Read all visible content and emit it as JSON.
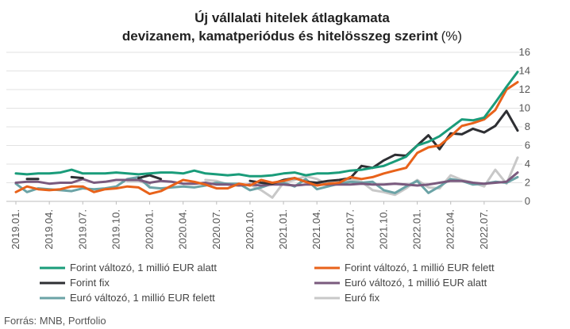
{
  "chart_data": {
    "type": "line",
    "title": "Új vállalati hitelek átlagkamata",
    "title_line2": "devizanem, kamatperiódus és hitelösszeg szerint",
    "title_unit": "(%)",
    "source": "Forrás: MNB, Portfolio",
    "ylim": [
      0,
      16
    ],
    "y_ticks": [
      0,
      2,
      4,
      6,
      8,
      10,
      12,
      14,
      16
    ],
    "y_axis_position": "right",
    "grid": true,
    "legend_position": "bottom",
    "x_tick_labels": [
      "2019.01.",
      "2019.04.",
      "2019.07.",
      "2019.10.",
      "2020.01.",
      "2020.04.",
      "2020.07.",
      "2020.10.",
      "2021.01.",
      "2021.04.",
      "2021.07.",
      "2021.10.",
      "2022.01.",
      "2022.04.",
      "2022.07."
    ],
    "x": [
      "2019.01.",
      "2019.02.",
      "2019.03.",
      "2019.04.",
      "2019.05.",
      "2019.06.",
      "2019.07.",
      "2019.08.",
      "2019.09.",
      "2019.10.",
      "2019.11.",
      "2019.12.",
      "2020.01.",
      "2020.02.",
      "2020.03.",
      "2020.04.",
      "2020.05.",
      "2020.06.",
      "2020.07.",
      "2020.08.",
      "2020.09.",
      "2020.10.",
      "2020.11.",
      "2020.12.",
      "2021.01.",
      "2021.02.",
      "2021.03.",
      "2021.04.",
      "2021.05.",
      "2021.06.",
      "2021.07.",
      "2021.08.",
      "2021.09.",
      "2021.10.",
      "2021.11.",
      "2021.12.",
      "2022.01.",
      "2022.02.",
      "2022.03.",
      "2022.04.",
      "2022.05.",
      "2022.06.",
      "2022.07.",
      "2022.08.",
      "2022.09.",
      "2022.10."
    ],
    "series": [
      {
        "name": "Forint változó, 1 millió EUR alatt",
        "color": "#1a9c7a",
        "values": [
          3.0,
          2.9,
          3.0,
          3.0,
          3.1,
          3.4,
          3.0,
          3.0,
          3.0,
          3.1,
          3.0,
          2.9,
          3.0,
          3.1,
          3.1,
          3.0,
          3.3,
          3.0,
          2.9,
          2.8,
          2.9,
          2.7,
          2.7,
          2.8,
          3.0,
          3.1,
          2.8,
          3.0,
          3.0,
          3.1,
          3.3,
          3.4,
          3.6,
          3.8,
          4.3,
          4.8,
          6.0,
          6.4,
          7.0,
          7.9,
          8.8,
          8.7,
          9.0,
          10.6,
          12.3,
          13.9
        ]
      },
      {
        "name": "Forint változó, 1 millió EUR felett",
        "color": "#e8621a",
        "values": [
          1.0,
          1.6,
          1.3,
          1.2,
          1.3,
          1.6,
          1.6,
          1.0,
          1.3,
          1.4,
          1.6,
          1.5,
          0.8,
          1.1,
          1.7,
          2.3,
          2.1,
          1.8,
          1.4,
          1.4,
          1.9,
          1.7,
          2.3,
          2.0,
          2.2,
          2.5,
          2.1,
          1.7,
          1.9,
          2.0,
          2.6,
          2.4,
          2.6,
          3.0,
          3.3,
          3.6,
          5.2,
          5.8,
          6.0,
          7.0,
          8.1,
          8.4,
          8.8,
          9.8,
          12.0,
          12.8
        ]
      },
      {
        "name": "Forint fix",
        "color": "#2e2f33",
        "values": [
          null,
          2.4,
          2.4,
          null,
          null,
          2.6,
          2.5,
          null,
          null,
          null,
          null,
          2.5,
          2.8,
          2.4,
          null,
          null,
          null,
          null,
          null,
          null,
          null,
          2.2,
          2.0,
          1.9,
          2.3,
          2.5,
          2.1,
          2.0,
          2.2,
          2.3,
          2.5,
          3.8,
          3.6,
          4.4,
          5.0,
          4.9,
          6.0,
          7.1,
          5.6,
          7.3,
          7.2,
          7.8,
          7.4,
          8.1,
          9.7,
          7.6
        ]
      },
      {
        "name": "Euró változó, 1 millió EUR alatt",
        "color": "#7a5a7e",
        "values": [
          2.0,
          2.1,
          2.1,
          1.9,
          2.0,
          2.0,
          2.4,
          2.0,
          2.1,
          2.3,
          2.3,
          2.3,
          2.0,
          2.2,
          2.1,
          1.9,
          1.9,
          2.0,
          1.8,
          1.8,
          1.7,
          1.8,
          1.7,
          1.8,
          1.8,
          1.7,
          1.8,
          1.8,
          1.8,
          1.8,
          1.8,
          1.9,
          1.8,
          1.8,
          1.9,
          1.8,
          1.7,
          1.8,
          2.0,
          2.2,
          2.2,
          2.0,
          1.9,
          2.0,
          2.1,
          3.1
        ]
      },
      {
        "name": "Euró változó, 1 millió EUR felett",
        "color": "#6ba3a6",
        "values": [
          1.9,
          1.0,
          1.4,
          1.3,
          1.2,
          1.1,
          1.4,
          1.3,
          1.4,
          1.6,
          2.4,
          2.6,
          1.5,
          1.4,
          1.5,
          1.6,
          1.5,
          1.7,
          2.0,
          1.9,
          1.9,
          1.2,
          1.5,
          1.9,
          2.0,
          1.6,
          2.4,
          1.3,
          1.6,
          1.9,
          2.1,
          2.0,
          2.1,
          1.2,
          0.9,
          1.6,
          2.2,
          0.9,
          1.6,
          2.4,
          2.2,
          1.8,
          1.9,
          2.1,
          2.0,
          2.6
        ]
      },
      {
        "name": "Euró fix",
        "color": "#c8c8c8",
        "values": [
          null,
          null,
          null,
          null,
          null,
          null,
          null,
          null,
          null,
          null,
          2.2,
          2.2,
          1.8,
          null,
          null,
          null,
          null,
          2.3,
          2.2,
          1.8,
          1.7,
          1.8,
          1.2,
          0.4,
          2.0,
          2.3,
          2.7,
          2.4,
          1.8,
          2.0,
          2.4,
          2.1,
          1.2,
          1.0,
          0.7,
          1.4,
          2.3,
          1.5,
          1.4,
          2.8,
          2.3,
          2.0,
          1.6,
          3.4,
          1.9,
          4.7
        ]
      }
    ]
  }
}
